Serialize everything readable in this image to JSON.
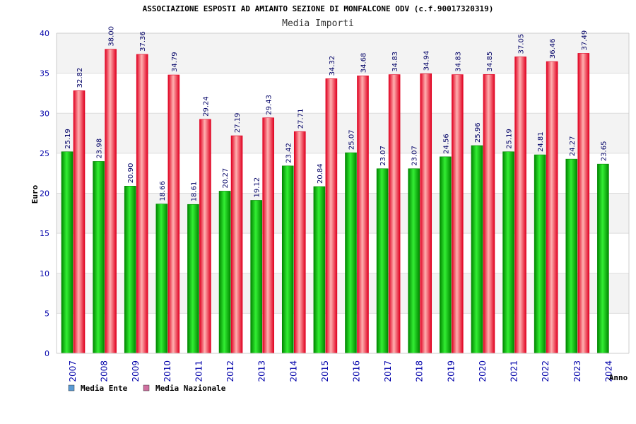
{
  "chart_data": {
    "type": "bar",
    "title": "ASSOCIAZIONE ESPOSTI AD AMIANTO SEZIONE DI MONFALCONE ODV (c.f.90017320319)",
    "subtitle": "Media Importi",
    "xlabel": "Anno",
    "ylabel": "Euro",
    "ylim": [
      0,
      40
    ],
    "yticks": [
      0,
      5,
      10,
      15,
      20,
      25,
      30,
      35,
      40
    ],
    "categories": [
      "2007",
      "2008",
      "2009",
      "2010",
      "2011",
      "2012",
      "2013",
      "2014",
      "2015",
      "2016",
      "2017",
      "2018",
      "2019",
      "2020",
      "2021",
      "2022",
      "2023",
      "2024"
    ],
    "series": [
      {
        "name": "Media Ente",
        "values": [
          25.19,
          23.98,
          20.9,
          18.66,
          18.61,
          20.27,
          19.12,
          23.42,
          20.84,
          25.07,
          23.07,
          23.07,
          24.56,
          25.96,
          25.19,
          24.81,
          24.27,
          23.65
        ],
        "labels": [
          "25.19",
          "23.98",
          "20.90",
          "18.66",
          "18.61",
          "20.27",
          "19.12",
          "23.42",
          "20.84",
          "25.07",
          "23.07",
          "23.07",
          "24.56",
          "25.96",
          "25.19",
          "24.81",
          "24.27",
          "23.65"
        ]
      },
      {
        "name": "Media Nazionale",
        "values": [
          32.82,
          38.0,
          37.36,
          34.79,
          29.24,
          27.19,
          29.43,
          27.71,
          34.32,
          34.68,
          34.83,
          34.94,
          34.83,
          34.85,
          37.05,
          36.46,
          37.49,
          null
        ],
        "labels": [
          "32.82",
          "38.00",
          "37.36",
          "34.79",
          "29.24",
          "27.19",
          "29.43",
          "27.71",
          "34.32",
          "34.68",
          "34.83",
          "34.94",
          "34.83",
          "34.85",
          "37.05",
          "36.46",
          "37.49",
          ""
        ]
      }
    ],
    "legend": [
      {
        "name": "Media Ente",
        "swatch": "#5b9bd5"
      },
      {
        "name": "Media Nazionale",
        "swatch": "#d070a0"
      }
    ],
    "colors": {
      "ente_dark": "#008800",
      "ente_light": "#33ee33",
      "naz_dark": "#e00020",
      "naz_light": "#ffb0b0",
      "band": "#f3f3f3",
      "axis": "#cccccc"
    }
  }
}
